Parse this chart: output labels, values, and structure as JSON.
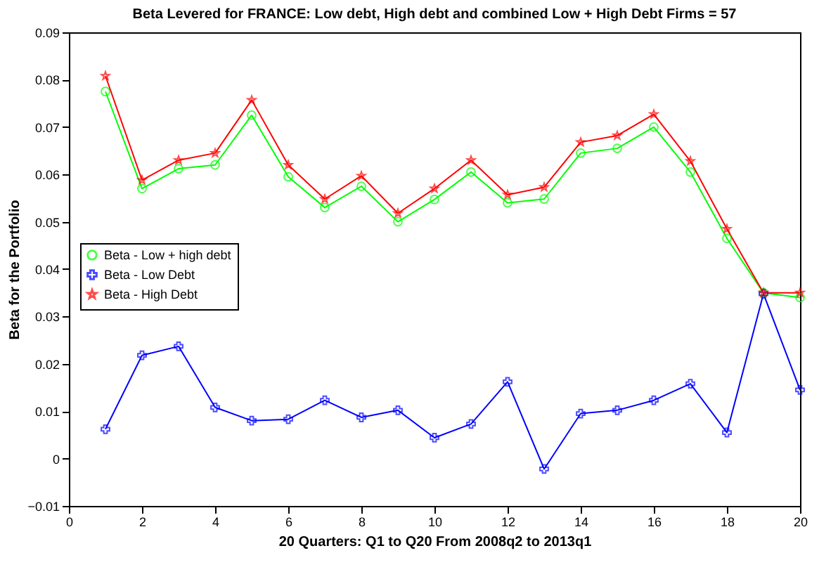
{
  "chart_data": {
    "type": "line",
    "title": "Beta Levered for FRANCE: Low debt, High debt and combined Low + High Debt Firms = 57",
    "xlabel": "20 Quarters: Q1 to Q20 From 2008q2 to 2013q1",
    "ylabel": "Beta for the Portfolio",
    "x": [
      1,
      2,
      3,
      4,
      5,
      6,
      7,
      8,
      9,
      10,
      11,
      12,
      13,
      14,
      15,
      16,
      17,
      18,
      19,
      20
    ],
    "series": [
      {
        "name": "Beta - Low + high debt",
        "color": "#00ff00",
        "marker": "circle",
        "values": [
          0.0775,
          0.057,
          0.0612,
          0.062,
          0.0725,
          0.0595,
          0.053,
          0.0575,
          0.05,
          0.0547,
          0.0605,
          0.054,
          0.0548,
          0.0645,
          0.0655,
          0.07,
          0.0605,
          0.0465,
          0.035,
          0.034
        ]
      },
      {
        "name": "Beta - Low Debt",
        "color": "#0000ff",
        "marker": "cross",
        "values": [
          0.0062,
          0.0218,
          0.0237,
          0.0108,
          0.008,
          0.0083,
          0.0123,
          0.0087,
          0.0102,
          0.0044,
          0.0073,
          0.0162,
          -0.0022,
          0.0095,
          0.0102,
          0.0123,
          0.0158,
          0.0055,
          0.0348,
          0.0145
        ]
      },
      {
        "name": "Beta - High Debt",
        "color": "#ff0000",
        "marker": "star",
        "values": [
          0.0808,
          0.0588,
          0.063,
          0.0645,
          0.0757,
          0.062,
          0.0548,
          0.0597,
          0.0518,
          0.057,
          0.063,
          0.0557,
          0.0573,
          0.0668,
          0.0682,
          0.0727,
          0.0628,
          0.0485,
          0.035,
          0.035
        ]
      }
    ],
    "xlim": [
      0,
      20
    ],
    "xticks": [
      0,
      2,
      4,
      6,
      8,
      10,
      12,
      14,
      16,
      18,
      20
    ],
    "ylim": [
      -0.01,
      0.09
    ],
    "yticks": [
      -0.01,
      0,
      0.01,
      0.02,
      0.03,
      0.04,
      0.05,
      0.06,
      0.07,
      0.08,
      0.09
    ],
    "legend": "left",
    "grid": false,
    "line_style": "solid"
  }
}
